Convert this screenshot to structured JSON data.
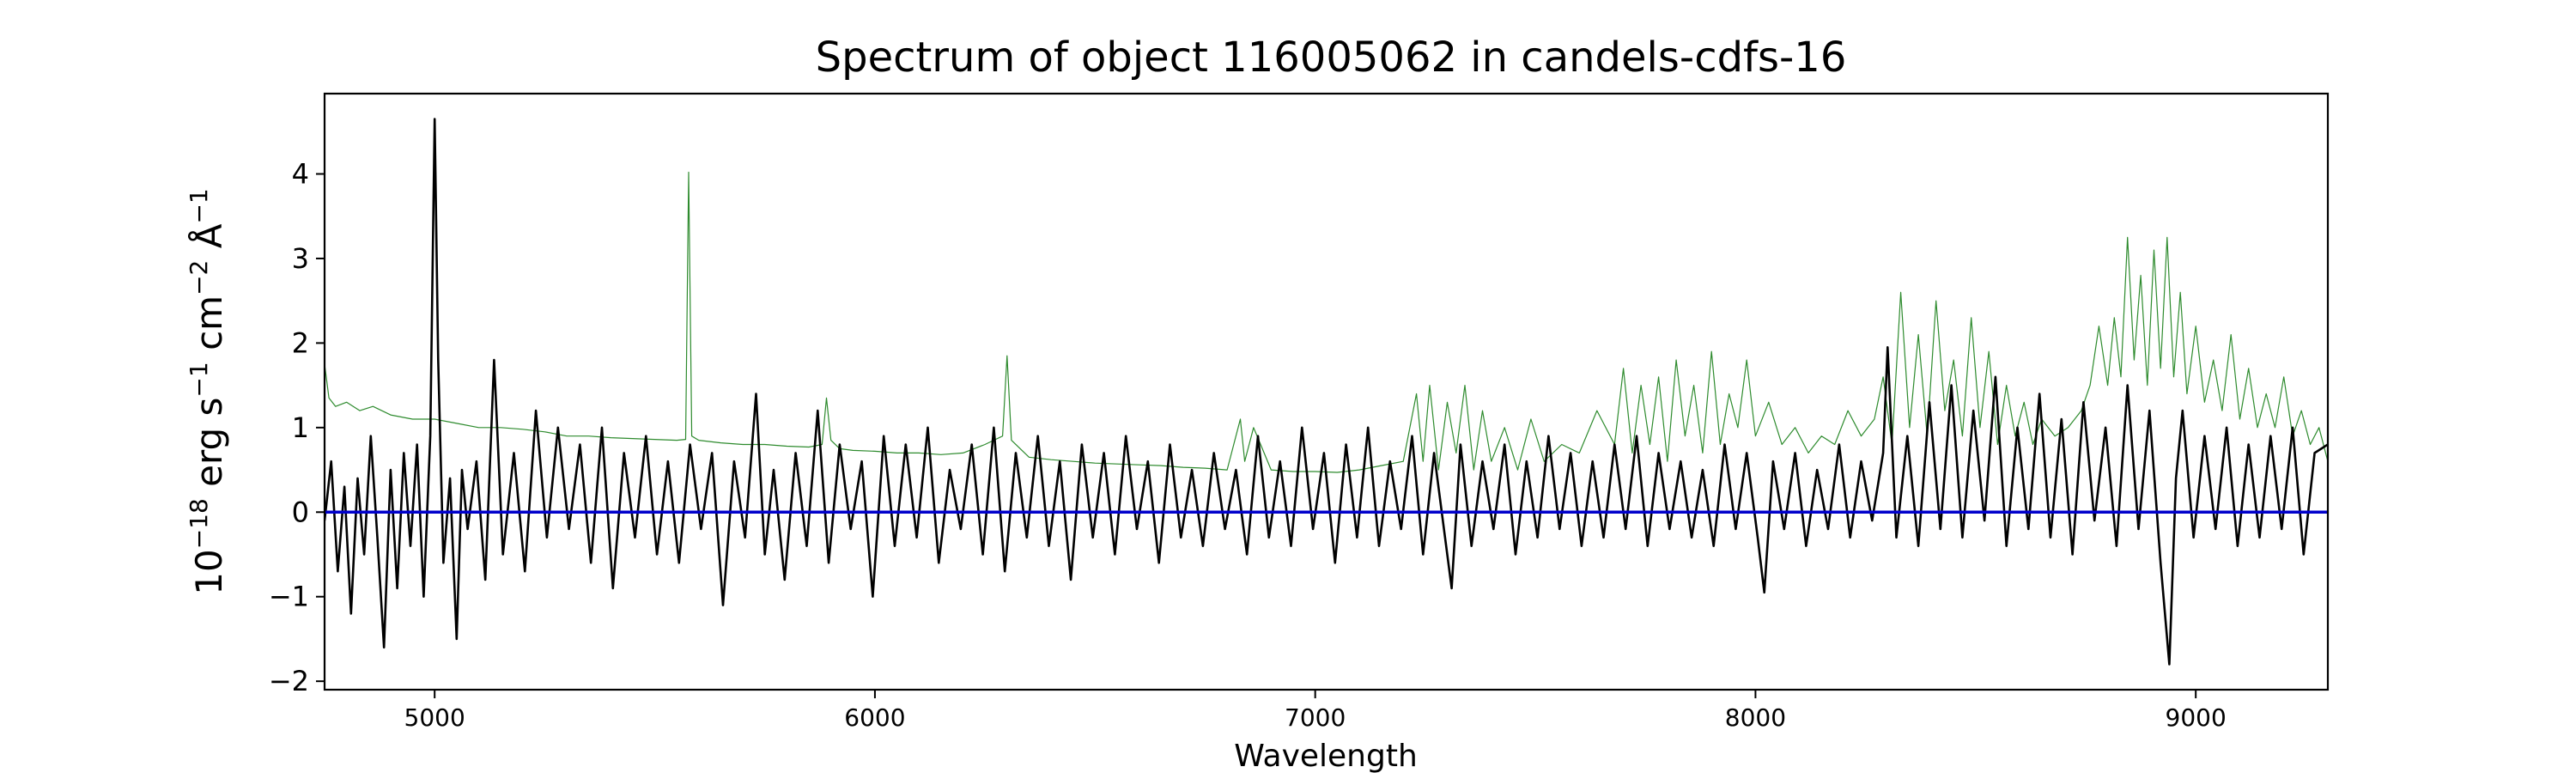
{
  "chart_data": {
    "type": "line",
    "title": "Spectrum of object 116005062 in candels-cdfs-16",
    "xlabel": "Wavelength",
    "ylabel": {
      "base": "10",
      "exp1": "−18",
      "erg": " erg s",
      "exp2": "−1",
      "cm": " cm",
      "exp3": "−2",
      "ang": " Å",
      "exp4": "−1"
    },
    "xlim": [
      4750,
      9300
    ],
    "ylim": [
      -2.1,
      4.95
    ],
    "xticks": [
      5000,
      6000,
      7000,
      8000,
      9000
    ],
    "xtick_labels": [
      "5000",
      "6000",
      "7000",
      "8000",
      "9000"
    ],
    "yticks": [
      -2,
      -1,
      0,
      1,
      2,
      3,
      4
    ],
    "ytick_labels": [
      "−2",
      "−1",
      "0",
      "1",
      "2",
      "3",
      "4"
    ],
    "grid": false,
    "legend": "none",
    "series": [
      {
        "role": "flux",
        "color": "#000000",
        "x": [
          4750,
          4765,
          4780,
          4795,
          4810,
          4825,
          4840,
          4855,
          4870,
          4885,
          4900,
          4915,
          4930,
          4945,
          4960,
          4975,
          4990,
          5000,
          5008,
          5020,
          5035,
          5050,
          5062,
          5075,
          5095,
          5115,
          5135,
          5155,
          5180,
          5205,
          5230,
          5255,
          5280,
          5305,
          5330,
          5355,
          5380,
          5405,
          5430,
          5455,
          5480,
          5505,
          5530,
          5555,
          5580,
          5605,
          5630,
          5655,
          5680,
          5705,
          5730,
          5750,
          5770,
          5795,
          5820,
          5845,
          5870,
          5895,
          5920,
          5945,
          5970,
          5995,
          6020,
          6045,
          6070,
          6095,
          6120,
          6145,
          6170,
          6195,
          6220,
          6245,
          6270,
          6295,
          6320,
          6345,
          6370,
          6395,
          6420,
          6445,
          6470,
          6495,
          6520,
          6545,
          6570,
          6595,
          6620,
          6645,
          6670,
          6695,
          6720,
          6745,
          6770,
          6795,
          6820,
          6845,
          6870,
          6895,
          6920,
          6945,
          6970,
          6995,
          7020,
          7045,
          7070,
          7095,
          7120,
          7145,
          7170,
          7195,
          7220,
          7245,
          7270,
          7295,
          7310,
          7330,
          7355,
          7380,
          7405,
          7430,
          7455,
          7480,
          7505,
          7530,
          7555,
          7580,
          7605,
          7630,
          7655,
          7680,
          7705,
          7730,
          7755,
          7780,
          7805,
          7830,
          7855,
          7880,
          7905,
          7930,
          7955,
          7980,
          8005,
          8020,
          8040,
          8065,
          8090,
          8115,
          8140,
          8165,
          8190,
          8215,
          8240,
          8265,
          8290,
          8300,
          8320,
          8345,
          8370,
          8395,
          8420,
          8445,
          8470,
          8495,
          8520,
          8545,
          8570,
          8595,
          8620,
          8645,
          8670,
          8695,
          8720,
          8745,
          8770,
          8795,
          8820,
          8845,
          8870,
          8895,
          8920,
          8940,
          8955,
          8970,
          8995,
          9020,
          9045,
          9070,
          9095,
          9120,
          9145,
          9170,
          9195,
          9220,
          9245,
          9270,
          9300
        ],
        "y": [
          -0.1,
          0.6,
          -0.7,
          0.3,
          -1.2,
          0.4,
          -0.5,
          0.9,
          -0.3,
          -1.6,
          0.5,
          -0.9,
          0.7,
          -0.4,
          0.8,
          -1.0,
          0.9,
          4.65,
          1.8,
          -0.6,
          0.4,
          -1.5,
          0.5,
          -0.2,
          0.6,
          -0.8,
          1.8,
          -0.5,
          0.7,
          -0.7,
          1.2,
          -0.3,
          1.0,
          -0.2,
          0.8,
          -0.6,
          1.0,
          -0.9,
          0.7,
          -0.3,
          0.9,
          -0.5,
          0.6,
          -0.6,
          0.8,
          -0.2,
          0.7,
          -1.1,
          0.6,
          -0.3,
          1.4,
          -0.5,
          0.5,
          -0.8,
          0.7,
          -0.4,
          1.2,
          -0.6,
          0.8,
          -0.2,
          0.6,
          -1.0,
          0.9,
          -0.4,
          0.8,
          -0.3,
          1.0,
          -0.6,
          0.5,
          -0.2,
          0.8,
          -0.5,
          1.0,
          -0.7,
          0.7,
          -0.3,
          0.9,
          -0.4,
          0.6,
          -0.8,
          0.8,
          -0.3,
          0.7,
          -0.5,
          0.9,
          -0.2,
          0.6,
          -0.6,
          0.8,
          -0.3,
          0.5,
          -0.4,
          0.7,
          -0.2,
          0.5,
          -0.5,
          0.9,
          -0.3,
          0.6,
          -0.4,
          1.0,
          -0.2,
          0.7,
          -0.6,
          0.8,
          -0.3,
          1.0,
          -0.4,
          0.6,
          -0.2,
          0.9,
          -0.5,
          0.7,
          -0.3,
          -0.9,
          0.8,
          -0.4,
          0.6,
          -0.2,
          0.8,
          -0.5,
          0.6,
          -0.3,
          0.9,
          -0.2,
          0.7,
          -0.4,
          0.6,
          -0.3,
          0.8,
          -0.2,
          0.9,
          -0.4,
          0.7,
          -0.2,
          0.6,
          -0.3,
          0.5,
          -0.4,
          0.8,
          -0.2,
          0.7,
          -0.3,
          -0.95,
          0.6,
          -0.2,
          0.7,
          -0.4,
          0.5,
          -0.2,
          0.8,
          -0.3,
          0.6,
          -0.1,
          0.7,
          1.95,
          -0.3,
          0.9,
          -0.4,
          1.3,
          -0.2,
          1.5,
          -0.3,
          1.2,
          -0.1,
          1.6,
          -0.4,
          1.0,
          -0.2,
          1.4,
          -0.3,
          1.1,
          -0.5,
          1.3,
          -0.1,
          1.0,
          -0.4,
          1.5,
          -0.2,
          1.2,
          -0.6,
          -1.8,
          0.4,
          1.2,
          -0.3,
          0.9,
          -0.2,
          1.0,
          -0.4,
          0.8,
          -0.3,
          0.9,
          -0.2,
          1.0,
          -0.5,
          0.7,
          0.8
        ]
      },
      {
        "role": "noise",
        "color": "#2e8b2e",
        "x": [
          4750,
          4760,
          4775,
          4800,
          4830,
          4860,
          4900,
          4950,
          5000,
          5050,
          5100,
          5150,
          5200,
          5250,
          5300,
          5350,
          5400,
          5450,
          5500,
          5550,
          5570,
          5577,
          5584,
          5600,
          5650,
          5700,
          5750,
          5800,
          5850,
          5880,
          5890,
          5900,
          5920,
          5950,
          6000,
          6050,
          6100,
          6150,
          6200,
          6250,
          6290,
          6300,
          6310,
          6350,
          6400,
          6450,
          6500,
          6550,
          6600,
          6650,
          6700,
          6750,
          6800,
          6830,
          6840,
          6860,
          6900,
          6950,
          7000,
          7050,
          7100,
          7150,
          7200,
          7230,
          7245,
          7260,
          7280,
          7300,
          7320,
          7340,
          7360,
          7380,
          7400,
          7430,
          7460,
          7490,
          7520,
          7560,
          7600,
          7640,
          7680,
          7700,
          7720,
          7740,
          7760,
          7780,
          7800,
          7820,
          7840,
          7860,
          7880,
          7900,
          7920,
          7940,
          7960,
          7980,
          8000,
          8030,
          8060,
          8090,
          8120,
          8150,
          8180,
          8210,
          8240,
          8270,
          8290,
          8310,
          8330,
          8350,
          8370,
          8390,
          8410,
          8430,
          8450,
          8470,
          8490,
          8510,
          8530,
          8550,
          8570,
          8590,
          8610,
          8630,
          8650,
          8680,
          8710,
          8740,
          8760,
          8780,
          8800,
          8815,
          8830,
          8845,
          8860,
          8875,
          8890,
          8905,
          8920,
          8935,
          8950,
          8965,
          8980,
          9000,
          9020,
          9040,
          9060,
          9080,
          9100,
          9120,
          9140,
          9160,
          9180,
          9200,
          9220,
          9240,
          9260,
          9280,
          9300
        ],
        "y": [
          1.75,
          1.35,
          1.25,
          1.3,
          1.2,
          1.25,
          1.15,
          1.1,
          1.1,
          1.05,
          1.0,
          1.0,
          0.98,
          0.95,
          0.9,
          0.9,
          0.88,
          0.87,
          0.86,
          0.85,
          0.86,
          4.02,
          0.9,
          0.85,
          0.82,
          0.8,
          0.8,
          0.78,
          0.77,
          0.8,
          1.35,
          0.85,
          0.75,
          0.73,
          0.72,
          0.7,
          0.7,
          0.68,
          0.7,
          0.8,
          0.9,
          1.85,
          0.85,
          0.65,
          0.62,
          0.6,
          0.58,
          0.57,
          0.56,
          0.55,
          0.53,
          0.52,
          0.5,
          1.1,
          0.6,
          1.0,
          0.5,
          0.48,
          0.48,
          0.47,
          0.5,
          0.55,
          0.6,
          1.4,
          0.6,
          1.5,
          0.5,
          1.3,
          0.7,
          1.5,
          0.5,
          1.2,
          0.6,
          1.0,
          0.5,
          1.1,
          0.6,
          0.8,
          0.7,
          1.2,
          0.8,
          1.7,
          0.7,
          1.5,
          0.8,
          1.6,
          0.6,
          1.8,
          0.9,
          1.5,
          0.7,
          1.9,
          0.8,
          1.4,
          1.0,
          1.8,
          0.9,
          1.3,
          0.8,
          1.0,
          0.7,
          0.9,
          0.8,
          1.2,
          0.9,
          1.1,
          1.6,
          0.8,
          2.6,
          1.0,
          2.1,
          0.9,
          2.5,
          1.2,
          1.8,
          0.9,
          2.3,
          1.0,
          1.9,
          0.8,
          1.5,
          0.9,
          1.3,
          0.8,
          1.1,
          0.9,
          1.0,
          1.2,
          1.5,
          2.2,
          1.5,
          2.3,
          1.6,
          3.25,
          1.8,
          2.8,
          1.5,
          3.1,
          1.7,
          3.25,
          1.6,
          2.6,
          1.4,
          2.2,
          1.3,
          1.8,
          1.2,
          2.1,
          1.1,
          1.7,
          1.0,
          1.4,
          1.0,
          1.6,
          0.9,
          1.2,
          0.8,
          1.0,
          0.6
        ]
      },
      {
        "role": "zero-line",
        "color": "#0000cc",
        "x": [
          4750,
          9300
        ],
        "y": [
          0,
          0
        ]
      }
    ]
  }
}
